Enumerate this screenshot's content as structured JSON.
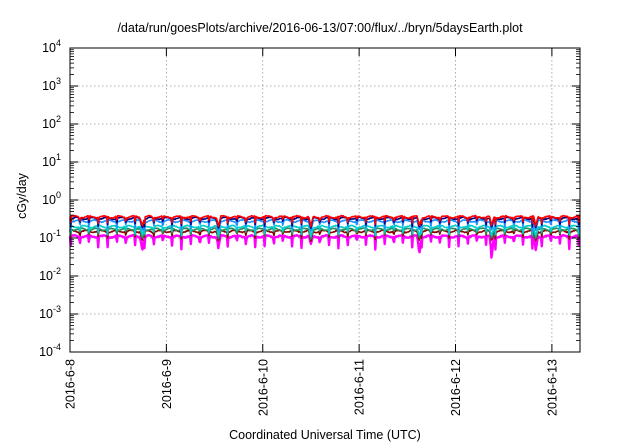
{
  "chart_data": {
    "type": "line",
    "title": "/data/run/goesPlots/archive/2016-06-13/07:00/flux/../bryn/5daysEarth.plot",
    "xlabel": "Coordinated Universal Time (UTC)",
    "ylabel": "cGy/day",
    "yscale": "log",
    "ylim": [
      0.0001,
      10000
    ],
    "xlim": [
      "2016-06-08T00:00",
      "2016-06-13T07:00"
    ],
    "y_ticks": [
      {
        "base": "10",
        "exp": "-4",
        "value": 0.0001
      },
      {
        "base": "10",
        "exp": "-3",
        "value": 0.001
      },
      {
        "base": "10",
        "exp": "-2",
        "value": 0.01
      },
      {
        "base": "10",
        "exp": "-1",
        "value": 0.1
      },
      {
        "base": "10",
        "exp": "0",
        "value": 1
      },
      {
        "base": "10",
        "exp": "1",
        "value": 10
      },
      {
        "base": "10",
        "exp": "2",
        "value": 100
      },
      {
        "base": "10",
        "exp": "3",
        "value": 1000
      },
      {
        "base": "10",
        "exp": "4",
        "value": 10000
      }
    ],
    "x_ticks": [
      "2016-6-8",
      "2016-6-9",
      "2016-6-10",
      "2016-6-11",
      "2016-6-12",
      "2016-6-13"
    ],
    "grid": true,
    "series": [
      {
        "color": "#ff00ff",
        "level": 0.11,
        "dip_depth": 0.55
      },
      {
        "color": "#8b0000",
        "level": 0.15,
        "dip_depth": 0.35
      },
      {
        "color": "#00ced1",
        "level": 0.2,
        "dip_depth": 0.4
      },
      {
        "color": "#2e8b57",
        "level": 0.17,
        "dip_depth": 0.35
      },
      {
        "color": "#1e90ff",
        "level": 0.28,
        "dip_depth": 0.45
      },
      {
        "color": "#000080",
        "level": 0.33,
        "dip_depth": 0.4
      },
      {
        "color": "#ff0000",
        "level": 0.36,
        "dip_depth": 0.35
      }
    ],
    "deep_dips": [
      {
        "x": "2016-06-08T18:00",
        "series": 0,
        "value": 0.045
      },
      {
        "x": "2016-06-09T13:00",
        "series": 0,
        "value": 0.06
      },
      {
        "x": "2016-06-10T12:00",
        "series": 0,
        "value": 0.07
      },
      {
        "x": "2016-06-11T15:00",
        "series": 0,
        "value": 0.035
      },
      {
        "x": "2016-06-12T09:00",
        "series": 0,
        "value": 0.022
      },
      {
        "x": "2016-06-12T20:00",
        "series": 0,
        "value": 0.045
      }
    ]
  }
}
